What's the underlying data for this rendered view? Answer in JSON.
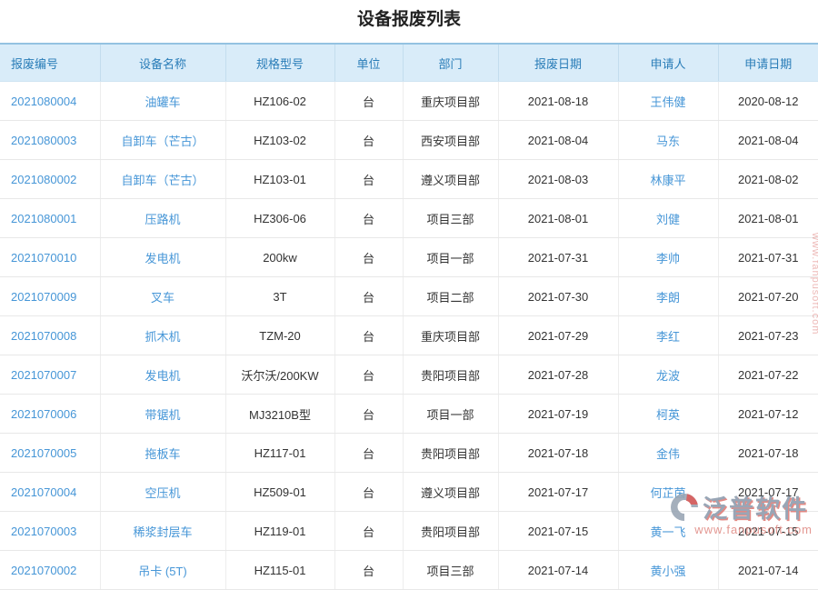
{
  "page": {
    "title": "设备报废列表"
  },
  "colors": {
    "header_bg": "#d9ecf9",
    "header_text": "#2a7db8",
    "header_top_border": "#94c2e1",
    "link_blue": "#4696d7",
    "row_border": "#e8e8e8",
    "watermark_red": "#e08a84",
    "watermark_gray": "#8b9aac"
  },
  "table": {
    "columns": [
      "报废编号",
      "设备名称",
      "规格型号",
      "单位",
      "部门",
      "报废日期",
      "申请人",
      "申请日期"
    ],
    "link_columns": [
      0,
      1,
      6
    ],
    "rows": [
      [
        "2021080004",
        "油罐车",
        "HZ106-02",
        "台",
        "重庆项目部",
        "2021-08-18",
        "王伟健",
        "2020-08-12"
      ],
      [
        "2021080003",
        "自卸车（芒古）",
        "HZ103-02",
        "台",
        "西安项目部",
        "2021-08-04",
        "马东",
        "2021-08-04"
      ],
      [
        "2021080002",
        "自卸车（芒古）",
        "HZ103-01",
        "台",
        "遵义项目部",
        "2021-08-03",
        "林康平",
        "2021-08-02"
      ],
      [
        "2021080001",
        "压路机",
        "HZ306-06",
        "台",
        "项目三部",
        "2021-08-01",
        "刘健",
        "2021-08-01"
      ],
      [
        "2021070010",
        "发电机",
        "200kw",
        "台",
        "项目一部",
        "2021-07-31",
        "李帅",
        "2021-07-31"
      ],
      [
        "2021070009",
        "叉车",
        "3T",
        "台",
        "项目二部",
        "2021-07-30",
        "李朗",
        "2021-07-20"
      ],
      [
        "2021070008",
        "抓木机",
        "TZM-20",
        "台",
        "重庆项目部",
        "2021-07-29",
        "李红",
        "2021-07-23"
      ],
      [
        "2021070007",
        "发电机",
        "沃尔沃/200KW",
        "台",
        "贵阳项目部",
        "2021-07-28",
        "龙波",
        "2021-07-22"
      ],
      [
        "2021070006",
        "带锯机",
        "MJ3210B型",
        "台",
        "项目一部",
        "2021-07-19",
        "柯英",
        "2021-07-12"
      ],
      [
        "2021070005",
        "拖板车",
        "HZ117-01",
        "台",
        "贵阳项目部",
        "2021-07-18",
        "金伟",
        "2021-07-18"
      ],
      [
        "2021070004",
        "空压机",
        "HZ509-01",
        "台",
        "遵义项目部",
        "2021-07-17",
        "何芷茵",
        "2021-07-17"
      ],
      [
        "2021070003",
        "稀浆封层车",
        "HZ119-01",
        "台",
        "贵阳项目部",
        "2021-07-15",
        "黄一飞",
        "2021-07-15"
      ],
      [
        "2021070002",
        "吊卡 (5T)",
        "HZ115-01",
        "台",
        "项目三部",
        "2021-07-14",
        "黄小强",
        "2021-07-14"
      ]
    ]
  },
  "watermark": {
    "brand": "泛普软件",
    "url": "www.fanpusoft.com"
  }
}
